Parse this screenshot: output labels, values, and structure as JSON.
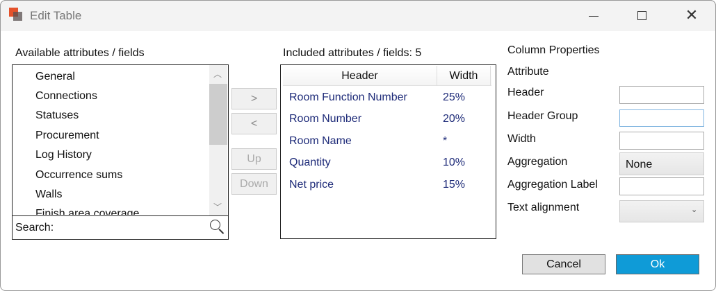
{
  "window": {
    "title": "Edit Table",
    "controls": [
      "minimize",
      "maximize",
      "close"
    ]
  },
  "available": {
    "label": "Available attributes / fields",
    "items": [
      "General",
      "Connections",
      "Statuses",
      "Procurement",
      "Log History",
      "Occurrence sums",
      "Walls",
      "Finish area coverage"
    ],
    "search_label": "Search:"
  },
  "transfer": {
    "add": ">",
    "remove": "<",
    "up": "Up",
    "down": "Down"
  },
  "included": {
    "label": "Included attributes / fields: 5",
    "columns": [
      "Header",
      "Width"
    ],
    "rows": [
      {
        "header": "Room Function Number",
        "width": "25%"
      },
      {
        "header": "Room Number",
        "width": "20%"
      },
      {
        "header": "Room Name",
        "width": "*"
      },
      {
        "header": "Quantity",
        "width": "10%"
      },
      {
        "header": "Net price",
        "width": "15%"
      }
    ]
  },
  "properties": {
    "title": "Column Properties",
    "attribute": "Attribute",
    "header": "Header",
    "header_group": "Header Group",
    "width": "Width",
    "aggregation": "Aggregation",
    "aggregation_value": "None",
    "aggregation_label": "Aggregation Label",
    "text_alignment": "Text alignment"
  },
  "footer": {
    "cancel": "Cancel",
    "ok": "Ok"
  },
  "colors": {
    "accent": "#0f9bd7",
    "row_text": "#1d2a78"
  }
}
